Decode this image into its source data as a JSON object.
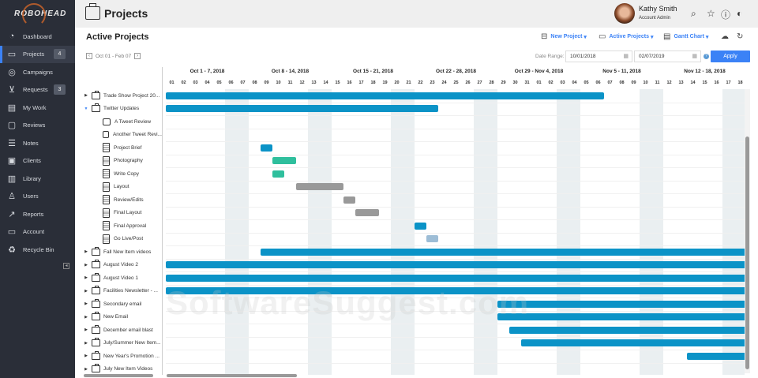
{
  "brand": "ROBOHEAD",
  "sidebar": {
    "items": [
      {
        "label": "Dashboard",
        "icon": "gauge-icon",
        "glyph": "◔"
      },
      {
        "label": "Projects",
        "icon": "briefcase-icon",
        "glyph": "▭",
        "badge": "4",
        "active": true
      },
      {
        "label": "Campaigns",
        "icon": "target-icon",
        "glyph": "◎"
      },
      {
        "label": "Requests",
        "icon": "inbox-icon",
        "glyph": "⊻",
        "badge": "3"
      },
      {
        "label": "My Work",
        "icon": "desk-icon",
        "glyph": "▤"
      },
      {
        "label": "Reviews",
        "icon": "review-icon",
        "glyph": "▢"
      },
      {
        "label": "Notes",
        "icon": "notes-icon",
        "glyph": "☰"
      },
      {
        "label": "Clients",
        "icon": "contact-icon",
        "glyph": "▣"
      },
      {
        "label": "Library",
        "icon": "library-icon",
        "glyph": "▥"
      },
      {
        "label": "Users",
        "icon": "users-icon",
        "glyph": "♙"
      },
      {
        "label": "Reports",
        "icon": "chart-icon",
        "glyph": "↗"
      },
      {
        "label": "Account",
        "icon": "account-icon",
        "glyph": "▭"
      },
      {
        "label": "Recycle Bin",
        "icon": "recycle-icon",
        "glyph": "♻"
      }
    ]
  },
  "header": {
    "title": "Projects",
    "user_name": "Kathy Smith",
    "user_role": "Account Admin"
  },
  "main": {
    "title": "Active Projects",
    "new_project": "New Project",
    "active_projects": "Active Projects",
    "view": "Gantt Chart",
    "range_label": "Oct 01 - Feb 07",
    "date_range_label": "Date Range:",
    "date_from": "10/01/2018",
    "date_to": "02/07/2019",
    "apply": "Apply"
  },
  "colors": {
    "blue": "#0b93c7",
    "teal": "#2fbf9d",
    "gray": "#999999",
    "lightblue": "#9dbdd6"
  },
  "weeks": [
    "Oct 1 - 7, 2018",
    "Oct 8 - 14, 2018",
    "Oct 15 - 21, 2018",
    "Oct 22 - 28, 2018",
    "Oct 29 - Nov 4, 2018",
    "Nov 5 - 11, 2018",
    "Nov 12 - 18, 2018"
  ],
  "days": [
    "01",
    "02",
    "03",
    "04",
    "05",
    "06",
    "07",
    "08",
    "09",
    "10",
    "11",
    "12",
    "13",
    "14",
    "15",
    "16",
    "17",
    "18",
    "19",
    "20",
    "21",
    "22",
    "23",
    "24",
    "25",
    "26",
    "27",
    "28",
    "29",
    "30",
    "31",
    "01",
    "02",
    "03",
    "04",
    "05",
    "06",
    "07",
    "08",
    "09",
    "10",
    "11",
    "12",
    "13",
    "14",
    "15",
    "16",
    "17",
    "18"
  ],
  "rows": [
    {
      "name": "Trade Show Project 20...",
      "type": "project",
      "start": "2018-10-01",
      "end": "2018-11-06",
      "color": "blue"
    },
    {
      "name": "Twitter Updates",
      "type": "project",
      "open": true,
      "start": "2018-10-01",
      "end": "2018-10-23",
      "color": "blue"
    },
    {
      "name": "A Tweet Review",
      "type": "review"
    },
    {
      "name": "Another Tweet Revi...",
      "type": "review"
    },
    {
      "name": "Project Brief",
      "type": "task",
      "start": "2018-10-09",
      "end": "2018-10-09",
      "color": "blue"
    },
    {
      "name": "Photography",
      "type": "task",
      "start": "2018-10-10",
      "end": "2018-10-11",
      "color": "teal"
    },
    {
      "name": "Write Copy",
      "type": "task",
      "start": "2018-10-10",
      "end": "2018-10-10",
      "color": "teal"
    },
    {
      "name": "Layout",
      "type": "task",
      "start": "2018-10-12",
      "end": "2018-10-15",
      "color": "gray"
    },
    {
      "name": "Review/Edits",
      "type": "task",
      "start": "2018-10-16",
      "end": "2018-10-16",
      "color": "gray"
    },
    {
      "name": "Final Layout",
      "type": "task",
      "start": "2018-10-17",
      "end": "2018-10-18",
      "color": "gray"
    },
    {
      "name": "Final Approval",
      "type": "task",
      "start": "2018-10-22",
      "end": "2018-10-22",
      "color": "blue"
    },
    {
      "name": "Go Live/Post",
      "type": "task",
      "start": "2018-10-23",
      "end": "2018-10-23",
      "color": "lightblue"
    },
    {
      "name": "Fall New Item videos",
      "type": "project",
      "start": "2018-10-09",
      "end": "2018-11-18",
      "color": "blue"
    },
    {
      "name": "August Video 2",
      "type": "project",
      "start": "2018-10-01",
      "end": "2018-11-18",
      "color": "blue"
    },
    {
      "name": "August Video 1",
      "type": "project",
      "start": "2018-10-01",
      "end": "2018-11-18",
      "color": "blue"
    },
    {
      "name": "Facilities Newsletter - ...",
      "type": "project",
      "start": "2018-10-01",
      "end": "2018-11-18",
      "color": "blue"
    },
    {
      "name": "Secondary email",
      "type": "project",
      "start": "2018-10-29",
      "end": "2018-11-18",
      "color": "blue"
    },
    {
      "name": "New Email",
      "type": "project",
      "start": "2018-10-29",
      "end": "2018-11-18",
      "color": "blue"
    },
    {
      "name": "December email blast",
      "type": "project",
      "start": "2018-10-30",
      "end": "2018-11-18",
      "color": "blue"
    },
    {
      "name": "July/Summer New Item...",
      "type": "project",
      "start": "2018-10-31",
      "end": "2018-11-18",
      "color": "blue"
    },
    {
      "name": "New Year's Promotion ...",
      "type": "project",
      "start": "2018-11-14",
      "end": "2018-11-18",
      "color": "blue"
    },
    {
      "name": "July New Item Videos",
      "type": "project"
    }
  ],
  "watermark": "SoftwareSuggest.com"
}
